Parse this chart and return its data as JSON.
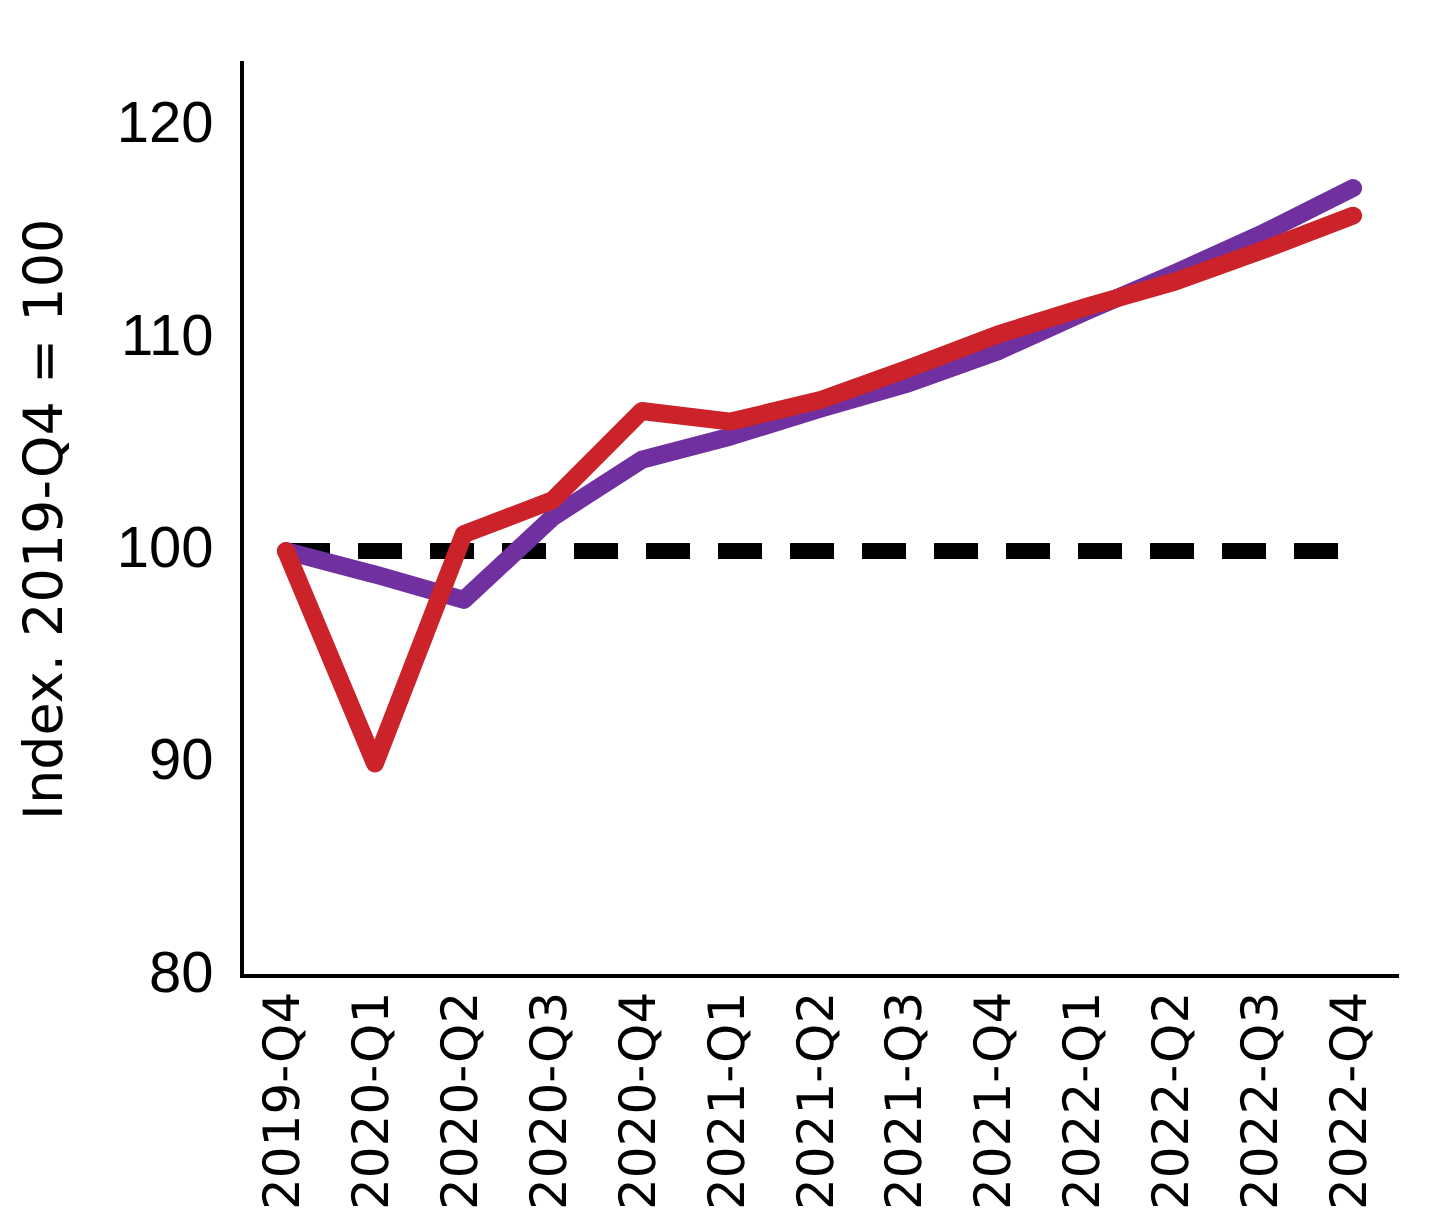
{
  "chart_data": {
    "type": "line",
    "ylabel": "Index. 2019-Q4 = 100",
    "categories": [
      "2019-Q4",
      "2020-Q1",
      "2020-Q2",
      "2020-Q3",
      "2020-Q4",
      "2021-Q1",
      "2021-Q2",
      "2021-Q3",
      "2021-Q4",
      "2022-Q1",
      "2022-Q2",
      "2022-Q3",
      "2022-Q4"
    ],
    "series": [
      {
        "color": "#cc2229",
        "values": [
          100,
          90,
          100.8,
          102.4,
          106.6,
          106.1,
          107.1,
          108.6,
          110.2,
          111.5,
          112.7,
          114.2,
          115.8
        ]
      },
      {
        "color": "#7030a0",
        "values": [
          100,
          98.9,
          97.7,
          101.6,
          104.3,
          105.4,
          106.7,
          107.9,
          109.4,
          111.3,
          113.1,
          115.0,
          117.1
        ]
      }
    ],
    "ylim": [
      80,
      123
    ],
    "yticks": [
      80,
      90,
      100,
      110,
      120
    ],
    "ref_lines": [
      {
        "axis": "y",
        "value": 100,
        "color": "#000000",
        "line_style": "dashed"
      }
    ],
    "grid": false,
    "legend": false,
    "marker": "none",
    "line_style": "solid"
  }
}
